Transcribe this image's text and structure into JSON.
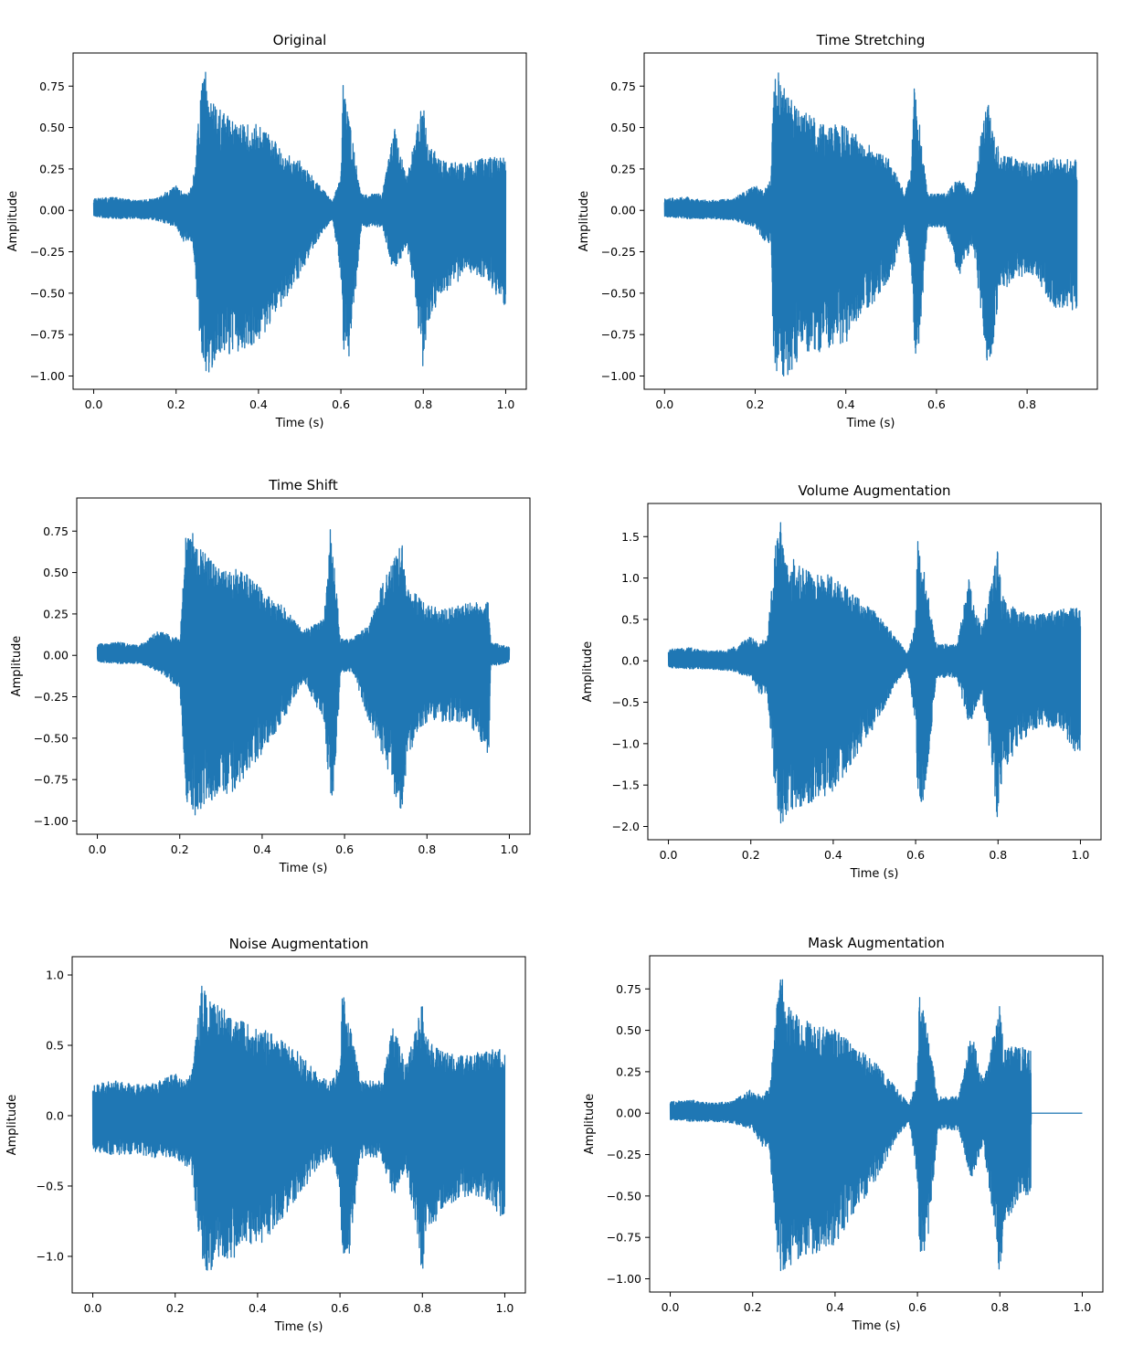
{
  "chart_data": [
    {
      "type": "line",
      "title": "Original",
      "xlabel": "Time (s)",
      "ylabel": "Amplitude",
      "xlim": [
        -0.05,
        1.05
      ],
      "ylim": [
        -1.08,
        0.95
      ],
      "xticks": [
        "0.0",
        "0.2",
        "0.4",
        "0.6",
        "0.8",
        "1.0"
      ],
      "yticks": [
        "0.75",
        "0.50",
        "0.25",
        "0.00",
        "−0.25",
        "−0.50",
        "−0.75",
        "−1.00"
      ],
      "series": [
        {
          "color": "#1f77b4",
          "envelope": {
            "x": [
              0.0,
              0.05,
              0.1,
              0.15,
              0.2,
              0.22,
              0.24,
              0.262,
              0.272,
              0.275,
              0.3,
              0.35,
              0.4,
              0.45,
              0.5,
              0.55,
              0.58,
              0.6,
              0.605,
              0.62,
              0.65,
              0.7,
              0.73,
              0.76,
              0.785,
              0.8,
              0.81,
              0.85,
              0.9,
              0.95,
              1.0
            ],
            "upper": [
              0.07,
              0.08,
              0.06,
              0.07,
              0.15,
              0.1,
              0.15,
              0.75,
              0.87,
              0.7,
              0.62,
              0.52,
              0.52,
              0.4,
              0.3,
              0.15,
              0.05,
              0.22,
              0.77,
              0.55,
              0.1,
              0.1,
              0.5,
              0.2,
              0.5,
              0.68,
              0.4,
              0.3,
              0.28,
              0.32,
              0.32
            ],
            "lower": [
              -0.04,
              -0.05,
              -0.05,
              -0.06,
              -0.1,
              -0.2,
              -0.2,
              -0.9,
              -1.0,
              -1.0,
              -0.9,
              -0.85,
              -0.8,
              -0.6,
              -0.4,
              -0.15,
              -0.05,
              -0.4,
              -0.85,
              -0.9,
              -0.1,
              -0.1,
              -0.4,
              -0.2,
              -0.65,
              -1.0,
              -0.7,
              -0.5,
              -0.4,
              -0.4,
              -0.6
            ]
          }
        }
      ]
    },
    {
      "type": "line",
      "title": "Time Stretching",
      "xlabel": "Time (s)",
      "ylabel": "Amplitude",
      "xlim": [
        -0.045,
        0.955
      ],
      "ylim": [
        -1.08,
        0.95
      ],
      "xticks": [
        "0.0",
        "0.2",
        "0.4",
        "0.6",
        "0.8"
      ],
      "yticks": [
        "0.75",
        "0.50",
        "0.25",
        "0.00",
        "−0.25",
        "−0.50",
        "−0.75",
        "−1.00"
      ],
      "series": [
        {
          "color": "#1f77b4",
          "envelope": {
            "x": [
              0.0,
              0.05,
              0.1,
              0.15,
              0.2,
              0.22,
              0.235,
              0.24,
              0.25,
              0.27,
              0.3,
              0.35,
              0.4,
              0.45,
              0.5,
              0.53,
              0.545,
              0.55,
              0.56,
              0.58,
              0.62,
              0.65,
              0.68,
              0.7,
              0.715,
              0.73,
              0.74,
              0.78,
              0.82,
              0.86,
              0.91
            ],
            "upper": [
              0.07,
              0.08,
              0.06,
              0.07,
              0.15,
              0.12,
              0.2,
              0.75,
              0.87,
              0.7,
              0.62,
              0.52,
              0.52,
              0.4,
              0.3,
              0.1,
              0.25,
              0.77,
              0.6,
              0.1,
              0.1,
              0.2,
              0.1,
              0.5,
              0.68,
              0.4,
              0.38,
              0.3,
              0.28,
              0.32,
              0.32
            ],
            "lower": [
              -0.04,
              -0.05,
              -0.05,
              -0.06,
              -0.1,
              -0.2,
              -0.2,
              -0.9,
              -1.0,
              -1.0,
              -0.9,
              -0.85,
              -0.8,
              -0.6,
              -0.4,
              -0.1,
              -0.4,
              -0.85,
              -0.9,
              -0.1,
              -0.1,
              -0.4,
              -0.2,
              -0.65,
              -1.0,
              -0.7,
              -0.5,
              -0.4,
              -0.4,
              -0.6,
              -0.6
            ]
          }
        }
      ]
    },
    {
      "type": "line",
      "title": "Time Shift",
      "xlabel": "Time (s)",
      "ylabel": "Amplitude",
      "xlim": [
        -0.05,
        1.05
      ],
      "ylim": [
        -1.08,
        0.95
      ],
      "xticks": [
        "0.0",
        "0.2",
        "0.4",
        "0.6",
        "0.8",
        "1.0"
      ],
      "yticks": [
        "0.75",
        "0.50",
        "0.25",
        "0.00",
        "−0.25",
        "−0.50",
        "−0.75",
        "−1.00"
      ],
      "series": [
        {
          "color": "#1f77b4",
          "envelope": {
            "x": [
              0.0,
              0.05,
              0.1,
              0.15,
              0.2,
              0.215,
              0.225,
              0.235,
              0.26,
              0.3,
              0.35,
              0.4,
              0.45,
              0.5,
              0.55,
              0.565,
              0.575,
              0.59,
              0.62,
              0.66,
              0.7,
              0.74,
              0.75,
              0.77,
              0.8,
              0.85,
              0.9,
              0.95,
              0.955,
              0.97,
              1.0
            ],
            "upper": [
              0.07,
              0.08,
              0.06,
              0.15,
              0.1,
              0.75,
              0.87,
              0.7,
              0.62,
              0.52,
              0.52,
              0.4,
              0.3,
              0.15,
              0.22,
              0.77,
              0.55,
              0.1,
              0.1,
              0.2,
              0.5,
              0.68,
              0.4,
              0.38,
              0.3,
              0.28,
              0.32,
              0.32,
              0.08,
              0.07,
              0.05
            ],
            "lower": [
              -0.04,
              -0.05,
              -0.05,
              -0.1,
              -0.2,
              -0.9,
              -1.0,
              -1.0,
              -0.9,
              -0.85,
              -0.8,
              -0.6,
              -0.4,
              -0.15,
              -0.4,
              -0.85,
              -0.9,
              -0.1,
              -0.1,
              -0.4,
              -0.65,
              -1.0,
              -0.7,
              -0.5,
              -0.4,
              -0.4,
              -0.4,
              -0.6,
              -0.06,
              -0.06,
              -0.04
            ]
          }
        }
      ]
    },
    {
      "type": "line",
      "title": "Volume Augmentation",
      "xlabel": "Time (s)",
      "ylabel": "Amplitude",
      "xlim": [
        -0.05,
        1.05
      ],
      "ylim": [
        -2.16,
        1.9
      ],
      "xticks": [
        "0.0",
        "0.2",
        "0.4",
        "0.6",
        "0.8",
        "1.0"
      ],
      "yticks": [
        "1.5",
        "1.0",
        "0.5",
        "0.0",
        "−0.5",
        "−1.0",
        "−1.5",
        "−2.0"
      ],
      "series": [
        {
          "color": "#1f77b4",
          "envelope": {
            "x": [
              0.0,
              0.05,
              0.1,
              0.15,
              0.2,
              0.22,
              0.24,
              0.262,
              0.272,
              0.275,
              0.3,
              0.35,
              0.4,
              0.45,
              0.5,
              0.55,
              0.58,
              0.6,
              0.605,
              0.62,
              0.65,
              0.7,
              0.73,
              0.76,
              0.785,
              0.8,
              0.81,
              0.85,
              0.9,
              0.95,
              1.0
            ],
            "upper": [
              0.14,
              0.16,
              0.12,
              0.14,
              0.3,
              0.2,
              0.3,
              1.5,
              1.74,
              1.4,
              1.24,
              1.04,
              1.04,
              0.8,
              0.6,
              0.3,
              0.1,
              0.44,
              1.54,
              1.1,
              0.2,
              0.2,
              1.0,
              0.4,
              1.0,
              1.36,
              0.8,
              0.6,
              0.56,
              0.64,
              0.64
            ],
            "lower": [
              -0.08,
              -0.1,
              -0.1,
              -0.12,
              -0.2,
              -0.4,
              -0.4,
              -1.8,
              -2.0,
              -2.0,
              -1.8,
              -1.7,
              -1.6,
              -1.2,
              -0.8,
              -0.3,
              -0.1,
              -0.8,
              -1.7,
              -1.8,
              -0.2,
              -0.2,
              -0.8,
              -0.4,
              -1.3,
              -2.0,
              -1.4,
              -1.0,
              -0.8,
              -0.8,
              -1.2
            ]
          }
        }
      ]
    },
    {
      "type": "line",
      "title": "Noise Augmentation",
      "xlabel": "Time (s)",
      "ylabel": "Amplitude",
      "xlim": [
        -0.05,
        1.05
      ],
      "ylim": [
        -1.26,
        1.13
      ],
      "xticks": [
        "0.0",
        "0.2",
        "0.4",
        "0.6",
        "0.8",
        "1.0"
      ],
      "yticks": [
        "1.0",
        "0.5",
        "0.0",
        "−0.5",
        "−1.0"
      ],
      "series": [
        {
          "color": "#1f77b4",
          "envelope": {
            "x": [
              0.0,
              0.05,
              0.1,
              0.15,
              0.2,
              0.22,
              0.24,
              0.262,
              0.272,
              0.275,
              0.3,
              0.35,
              0.4,
              0.45,
              0.5,
              0.55,
              0.58,
              0.6,
              0.605,
              0.62,
              0.65,
              0.7,
              0.73,
              0.76,
              0.785,
              0.8,
              0.81,
              0.85,
              0.9,
              0.95,
              1.0
            ],
            "upper": [
              0.22,
              0.25,
              0.22,
              0.23,
              0.3,
              0.25,
              0.3,
              0.88,
              1.03,
              0.85,
              0.8,
              0.68,
              0.65,
              0.55,
              0.45,
              0.3,
              0.25,
              0.38,
              0.9,
              0.7,
              0.25,
              0.25,
              0.65,
              0.35,
              0.65,
              0.82,
              0.55,
              0.45,
              0.43,
              0.47,
              0.47
            ],
            "lower": [
              -0.25,
              -0.28,
              -0.27,
              -0.3,
              -0.3,
              -0.35,
              -0.4,
              -1.0,
              -1.14,
              -1.15,
              -1.05,
              -1.0,
              -0.95,
              -0.78,
              -0.58,
              -0.35,
              -0.3,
              -0.58,
              -1.0,
              -1.05,
              -0.3,
              -0.3,
              -0.58,
              -0.38,
              -0.82,
              -1.15,
              -0.85,
              -0.68,
              -0.58,
              -0.58,
              -0.75
            ]
          }
        }
      ]
    },
    {
      "type": "line",
      "title": "Mask Augmentation",
      "xlabel": "Time (s)",
      "ylabel": "Amplitude",
      "xlim": [
        -0.05,
        1.05
      ],
      "ylim": [
        -1.08,
        0.95
      ],
      "xticks": [
        "0.0",
        "0.2",
        "0.4",
        "0.6",
        "0.8",
        "1.0"
      ],
      "yticks": [
        "0.75",
        "0.50",
        "0.25",
        "0.00",
        "−0.25",
        "−0.50",
        "−0.75",
        "−1.00"
      ],
      "series": [
        {
          "color": "#1f77b4",
          "envelope": {
            "x": [
              0.0,
              0.05,
              0.1,
              0.15,
              0.2,
              0.22,
              0.24,
              0.262,
              0.272,
              0.275,
              0.3,
              0.35,
              0.4,
              0.45,
              0.5,
              0.55,
              0.58,
              0.6,
              0.605,
              0.62,
              0.65,
              0.7,
              0.73,
              0.76,
              0.785,
              0.8,
              0.81,
              0.85,
              0.875,
              0.876,
              0.9,
              0.95,
              1.0
            ],
            "upper": [
              0.07,
              0.08,
              0.06,
              0.07,
              0.15,
              0.1,
              0.15,
              0.75,
              0.87,
              0.7,
              0.62,
              0.52,
              0.52,
              0.4,
              0.3,
              0.15,
              0.05,
              0.22,
              0.77,
              0.55,
              0.1,
              0.1,
              0.5,
              0.2,
              0.5,
              0.68,
              0.4,
              0.4,
              0.41,
              0.0,
              0.0,
              0.0,
              0.0
            ],
            "lower": [
              -0.04,
              -0.05,
              -0.05,
              -0.06,
              -0.1,
              -0.2,
              -0.2,
              -0.9,
              -1.0,
              -1.0,
              -0.9,
              -0.85,
              -0.8,
              -0.6,
              -0.4,
              -0.15,
              -0.05,
              -0.4,
              -0.85,
              -0.9,
              -0.1,
              -0.1,
              -0.4,
              -0.2,
              -0.65,
              -1.0,
              -0.7,
              -0.5,
              -0.5,
              0.0,
              0.0,
              0.0,
              0.0
            ]
          }
        }
      ]
    }
  ]
}
